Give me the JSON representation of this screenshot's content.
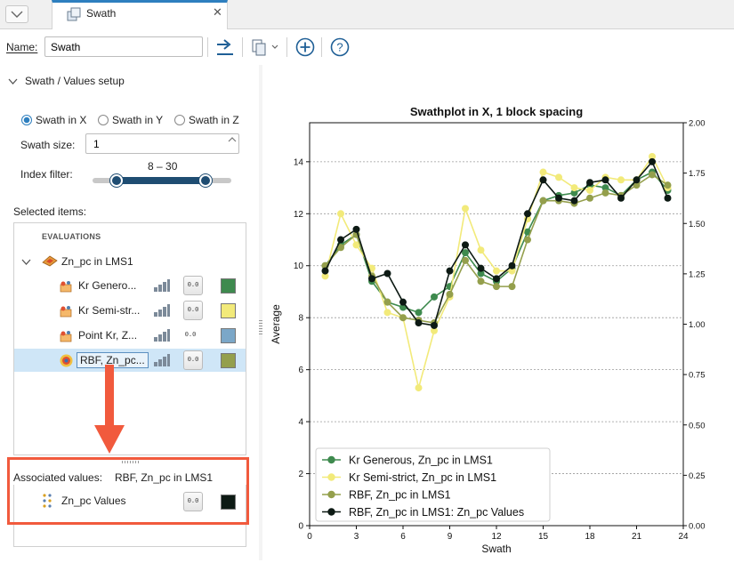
{
  "tab": {
    "title": "Swath",
    "close": "✕"
  },
  "toolbar": {
    "name_label": "Name:",
    "name_value": "Swath"
  },
  "setup": {
    "header": "Swath / Values setup",
    "radios": [
      {
        "label": "Swath in X",
        "selected": true
      },
      {
        "label": "Swath in Y",
        "selected": false
      },
      {
        "label": "Swath in Z",
        "selected": false
      }
    ],
    "swath_size_label": "Swath size:",
    "swath_size_value": "1",
    "index_filter_label": "Index filter:",
    "index_filter_range": "8 – 30",
    "index_filter_min": 8,
    "index_filter_max": 30
  },
  "selected_items": {
    "label": "Selected items:",
    "group": "EVALUATIONS",
    "parent": "Zn_pc in LMS1",
    "items": [
      {
        "label": "Kr Genero...",
        "color": "#3e8a4e",
        "digits": "0.0"
      },
      {
        "label": "Kr Semi-str...",
        "color": "#f2ea7a",
        "digits": "0.0"
      },
      {
        "label": "Point Kr, Z...",
        "color": "#7ba7c8",
        "digits": "0.0"
      },
      {
        "label": "RBF, Zn_pc...",
        "color": "#949f4c",
        "digits": "0.0"
      }
    ]
  },
  "associated": {
    "label": "Associated values:",
    "value": "RBF, Zn_pc in LMS1",
    "item": {
      "label": "Zn_pc Values",
      "color": "#0d1a14",
      "digits": "0.0"
    }
  },
  "chart_data": {
    "type": "line",
    "title": "Swathplot in X, 1 block spacing",
    "xlabel": "Swath",
    "ylabel": "Average",
    "xlim": [
      0,
      24
    ],
    "ylim": [
      0,
      15.5
    ],
    "y2lim": [
      0,
      2.0
    ],
    "xticks": [
      0,
      3,
      6,
      9,
      12,
      15,
      18,
      21,
      24
    ],
    "yticks": [
      0,
      2,
      4,
      6,
      8,
      10,
      12,
      14
    ],
    "y2ticks": [
      "0.00",
      "0.25",
      "0.50",
      "0.75",
      "1.00",
      "1.25",
      "1.50",
      "1.75",
      "2.00"
    ],
    "grid": "horizontal dotted",
    "legend_position": "bottom-left",
    "x": [
      1,
      2,
      3,
      4,
      5,
      6,
      7,
      8,
      9,
      10,
      11,
      12,
      13,
      14,
      15,
      16,
      17,
      18,
      19,
      20,
      21,
      22,
      23
    ],
    "series": [
      {
        "name": "Kr Generous, Zn_pc in LMS1",
        "color": "#3e8a4e",
        "values": [
          10.0,
          10.8,
          11.2,
          9.4,
          8.6,
          8.4,
          8.2,
          8.8,
          9.2,
          10.5,
          9.7,
          9.4,
          9.9,
          11.3,
          12.5,
          12.7,
          12.8,
          13.1,
          13.0,
          12.7,
          13.3,
          13.6,
          12.9
        ]
      },
      {
        "name": "Kr Semi-strict, Zn_pc in LMS1",
        "color": "#f2ea7a",
        "values": [
          9.6,
          12.0,
          10.8,
          9.9,
          8.2,
          8.0,
          5.3,
          7.5,
          8.8,
          12.2,
          10.6,
          9.8,
          9.8,
          11.8,
          13.6,
          13.4,
          13.0,
          12.9,
          13.4,
          13.3,
          13.3,
          14.2,
          13.0
        ]
      },
      {
        "name": "RBF, Zn_pc in LMS1",
        "color": "#949f4c",
        "values": [
          10.0,
          10.7,
          11.2,
          9.6,
          8.6,
          8.0,
          7.9,
          7.8,
          8.9,
          10.2,
          9.4,
          9.2,
          9.2,
          11.0,
          12.5,
          12.5,
          12.4,
          12.6,
          12.8,
          12.7,
          13.1,
          13.5,
          13.1
        ]
      },
      {
        "name": "RBF, Zn_pc in LMS1: Zn_pc Values",
        "color": "#0d1a14",
        "values": [
          9.8,
          11.0,
          11.4,
          9.5,
          9.7,
          8.6,
          7.8,
          7.7,
          9.8,
          10.8,
          9.9,
          9.5,
          10.0,
          12.0,
          13.3,
          12.6,
          12.5,
          13.2,
          13.3,
          12.6,
          13.3,
          14.0,
          12.6
        ]
      }
    ]
  }
}
